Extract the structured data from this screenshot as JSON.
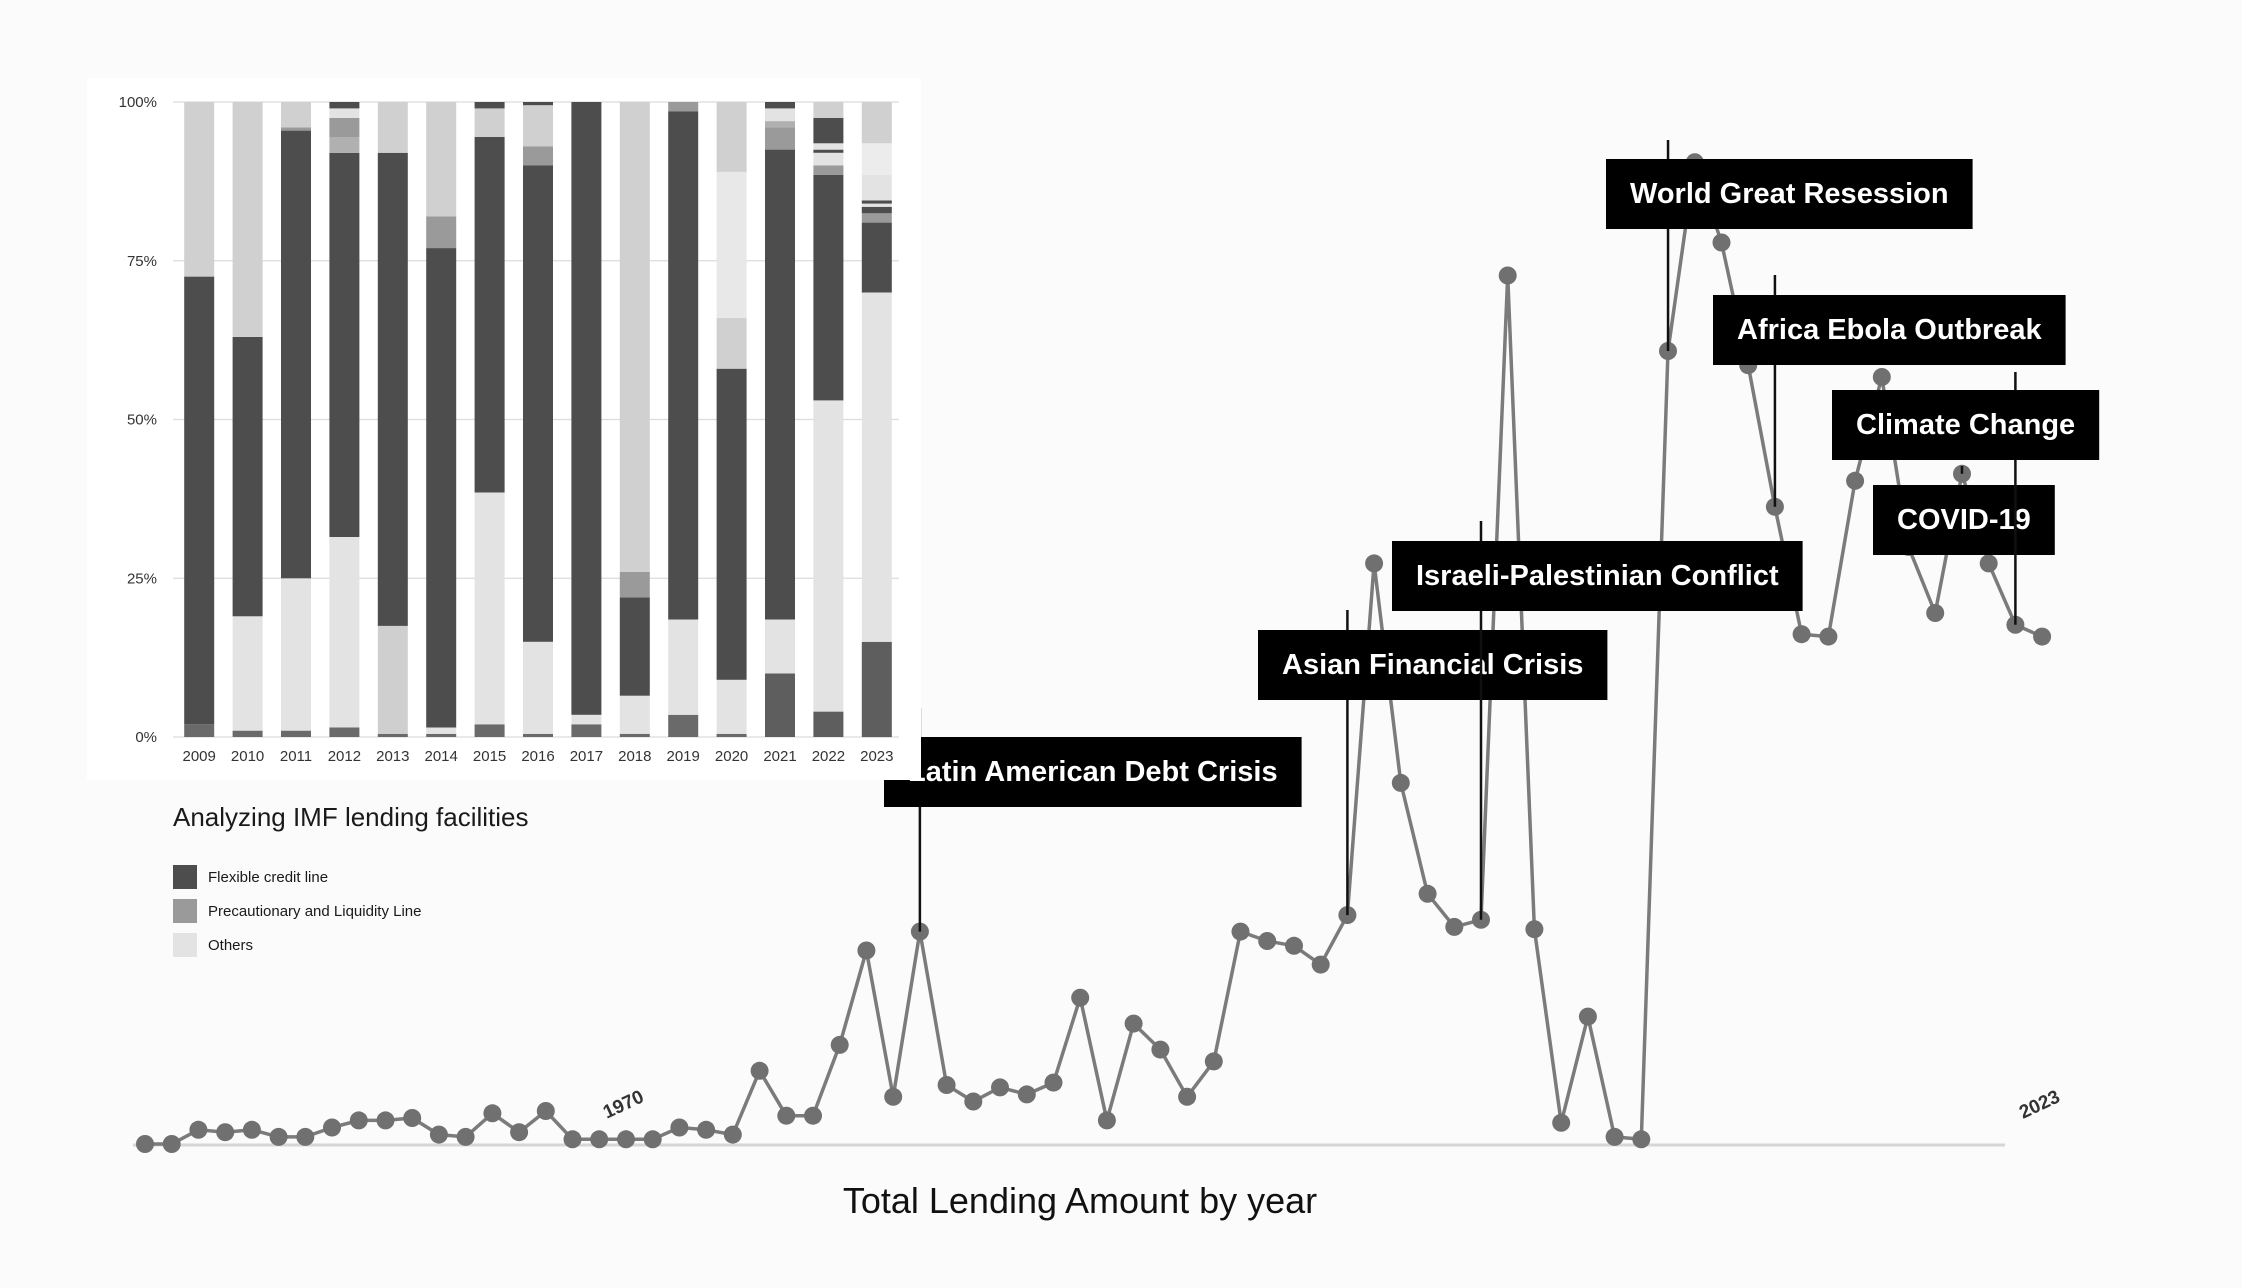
{
  "chart_data": [
    {
      "type": "line",
      "title": "Total Lending Amount by year",
      "xlabel": "",
      "ylabel": "",
      "x_tick_labels": [
        {
          "year": 1970,
          "label": "1970"
        },
        {
          "year": 2023,
          "label": "2023"
        }
      ],
      "x": [
        1952,
        1953,
        1954,
        1955,
        1956,
        1957,
        1958,
        1959,
        1960,
        1961,
        1962,
        1963,
        1964,
        1965,
        1966,
        1967,
        1968,
        1969,
        1970,
        1971,
        1972,
        1973,
        1974,
        1975,
        1976,
        1977,
        1978,
        1979,
        1980,
        1981,
        1982,
        1983,
        1984,
        1985,
        1986,
        1987,
        1988,
        1989,
        1990,
        1991,
        1992,
        1993,
        1994,
        1995,
        1996,
        1997,
        1998,
        1999,
        2000,
        2001,
        2002,
        2003,
        2004,
        2005,
        2006,
        2007,
        2008,
        2009,
        2010,
        2011,
        2012,
        2013,
        2014,
        2015,
        2016,
        2017,
        2018,
        2019,
        2020,
        2021,
        2022,
        2023
      ],
      "values": [
        0,
        0,
        0.6,
        0.5,
        0.6,
        0.3,
        0.3,
        0.7,
        1.0,
        1.0,
        1.1,
        0.4,
        0.3,
        1.3,
        0.5,
        1.4,
        0.2,
        0.2,
        0.2,
        0.2,
        0.7,
        0.6,
        0.4,
        3.1,
        1.2,
        1.2,
        4.2,
        8.2,
        2.0,
        9.0,
        2.5,
        1.8,
        2.4,
        2.1,
        2.6,
        6.2,
        1.0,
        5.1,
        4.0,
        2.0,
        3.5,
        9.0,
        8.6,
        8.4,
        7.6,
        9.7,
        24.6,
        15.3,
        10.6,
        9.2,
        9.5,
        36.8,
        9.1,
        0.9,
        5.4,
        0.3,
        0.2,
        33.6,
        41.6,
        38.2,
        33.0,
        27.0,
        21.6,
        21.5,
        28.1,
        32.5,
        25.3,
        22.5,
        28.4,
        24.6,
        22.0,
        21.5
      ],
      "annotations": [
        {
          "year": 1981,
          "label": "Latin American Debt Crisis"
        },
        {
          "year": 1997,
          "label": "Asian Financial Crisis"
        },
        {
          "year": 2002,
          "label": "Israeli-Palestinian Conflict"
        },
        {
          "year": 2009,
          "label": "World Great Resession"
        },
        {
          "year": 2013,
          "label": "Africa Ebola Outbreak"
        },
        {
          "year": 2020,
          "label": "COVID-19"
        },
        {
          "year": 2022,
          "label": "Climate Change"
        }
      ]
    },
    {
      "type": "bar",
      "stacked": "percent",
      "title": "Analyzing IMF lending facilities",
      "categories": [
        "2009",
        "2010",
        "2011",
        "2012",
        "2013",
        "2014",
        "2015",
        "2016",
        "2017",
        "2018",
        "2019",
        "2020",
        "2021",
        "2022",
        "2023"
      ],
      "y_tick_labels": [
        "0%",
        "25%",
        "50%",
        "75%",
        "100%"
      ],
      "ylim": [
        0,
        100
      ],
      "legend": [
        {
          "name": "Flexible credit line",
          "color": "#4d4d4d"
        },
        {
          "name": "Precautionary and Liquidity Line",
          "color": "#9a9a9a"
        },
        {
          "name": "Others",
          "color": "#e3e3e3"
        }
      ],
      "stacks": [
        [
          {
            "v": 2,
            "c": "#6a6a6a"
          },
          {
            "v": 70.5,
            "c": "#4d4d4d"
          },
          {
            "v": 27.5,
            "c": "#d0d0d0"
          }
        ],
        [
          {
            "v": 1,
            "c": "#6a6a6a"
          },
          {
            "v": 18,
            "c": "#e3e3e3"
          },
          {
            "v": 44,
            "c": "#4d4d4d"
          },
          {
            "v": 37,
            "c": "#d0d0d0"
          }
        ],
        [
          {
            "v": 1,
            "c": "#6a6a6a"
          },
          {
            "v": 24,
            "c": "#e3e3e3"
          },
          {
            "v": 70.5,
            "c": "#4d4d4d"
          },
          {
            "v": 0.5,
            "c": "#9a9a9a"
          },
          {
            "v": 4,
            "c": "#d0d0d0"
          }
        ],
        [
          {
            "v": 1.5,
            "c": "#6a6a6a"
          },
          {
            "v": 30,
            "c": "#e3e3e3"
          },
          {
            "v": 60.5,
            "c": "#4d4d4d"
          },
          {
            "v": 2.5,
            "c": "#b0b0b0"
          },
          {
            "v": 3,
            "c": "#9a9a9a"
          },
          {
            "v": 1.5,
            "c": "#e3e3e3"
          },
          {
            "v": 1,
            "c": "#4d4d4d"
          }
        ],
        [
          {
            "v": 0.5,
            "c": "#6a6a6a"
          },
          {
            "v": 17,
            "c": "#cfcfcf"
          },
          {
            "v": 74.5,
            "c": "#4d4d4d"
          },
          {
            "v": 8,
            "c": "#d0d0d0"
          }
        ],
        [
          {
            "v": 0.5,
            "c": "#6a6a6a"
          },
          {
            "v": 1,
            "c": "#e3e3e3"
          },
          {
            "v": 75.5,
            "c": "#4d4d4d"
          },
          {
            "v": 5,
            "c": "#9a9a9a"
          },
          {
            "v": 18,
            "c": "#d0d0d0"
          }
        ],
        [
          {
            "v": 2,
            "c": "#6a6a6a"
          },
          {
            "v": 36.5,
            "c": "#e3e3e3"
          },
          {
            "v": 56,
            "c": "#4d4d4d"
          },
          {
            "v": 4.5,
            "c": "#d0d0d0"
          },
          {
            "v": 1,
            "c": "#4d4d4d"
          }
        ],
        [
          {
            "v": 0.5,
            "c": "#6a6a6a"
          },
          {
            "v": 14.5,
            "c": "#e3e3e3"
          },
          {
            "v": 75,
            "c": "#4d4d4d"
          },
          {
            "v": 3,
            "c": "#9a9a9a"
          },
          {
            "v": 6.5,
            "c": "#d0d0d0"
          },
          {
            "v": 0.5,
            "c": "#4d4d4d"
          }
        ],
        [
          {
            "v": 2,
            "c": "#6a6a6a"
          },
          {
            "v": 1.5,
            "c": "#e3e3e3"
          },
          {
            "v": 96.5,
            "c": "#4d4d4d"
          }
        ],
        [
          {
            "v": 0.5,
            "c": "#6a6a6a"
          },
          {
            "v": 6,
            "c": "#e3e3e3"
          },
          {
            "v": 15.5,
            "c": "#4d4d4d"
          },
          {
            "v": 4,
            "c": "#9a9a9a"
          },
          {
            "v": 74,
            "c": "#d0d0d0"
          }
        ],
        [
          {
            "v": 3.5,
            "c": "#6a6a6a"
          },
          {
            "v": 15,
            "c": "#e3e3e3"
          },
          {
            "v": 80,
            "c": "#4d4d4d"
          },
          {
            "v": 1.5,
            "c": "#9a9a9a"
          }
        ],
        [
          {
            "v": 0.5,
            "c": "#6a6a6a"
          },
          {
            "v": 8.5,
            "c": "#e3e3e3"
          },
          {
            "v": 49,
            "c": "#4d4d4d"
          },
          {
            "v": 8,
            "c": "#d0d0d0"
          },
          {
            "v": 23,
            "c": "#e8e8e8"
          },
          {
            "v": 11,
            "c": "#d0d0d0"
          }
        ],
        [
          {
            "v": 10,
            "c": "#5e5e5e"
          },
          {
            "v": 8.5,
            "c": "#e3e3e3"
          },
          {
            "v": 74,
            "c": "#4d4d4d"
          },
          {
            "v": 3.5,
            "c": "#9a9a9a"
          },
          {
            "v": 1,
            "c": "#b0b0b0"
          },
          {
            "v": 2,
            "c": "#e3e3e3"
          },
          {
            "v": 1,
            "c": "#4d4d4d"
          }
        ],
        [
          {
            "v": 4,
            "c": "#5e5e5e"
          },
          {
            "v": 49,
            "c": "#e3e3e3"
          },
          {
            "v": 35.5,
            "c": "#4d4d4d"
          },
          {
            "v": 1.5,
            "c": "#9a9a9a"
          },
          {
            "v": 2,
            "c": "#e3e3e3"
          },
          {
            "v": 0.5,
            "c": "#4d4d4d"
          },
          {
            "v": 1,
            "c": "#e3e3e3"
          },
          {
            "v": 4,
            "c": "#4d4d4d"
          },
          {
            "v": 2.5,
            "c": "#d0d0d0"
          }
        ],
        [
          {
            "v": 15,
            "c": "#5e5e5e"
          },
          {
            "v": 55,
            "c": "#e3e3e3"
          },
          {
            "v": 11,
            "c": "#4d4d4d"
          },
          {
            "v": 1.5,
            "c": "#9a9a9a"
          },
          {
            "v": 1,
            "c": "#4d4d4d"
          },
          {
            "v": 0.5,
            "c": "#e3e3e3"
          },
          {
            "v": 0.5,
            "c": "#4d4d4d"
          },
          {
            "v": 4,
            "c": "#e3e3e3"
          },
          {
            "v": 5,
            "c": "#ececec"
          },
          {
            "v": 6.5,
            "c": "#d0d0d0"
          }
        ]
      ]
    }
  ]
}
